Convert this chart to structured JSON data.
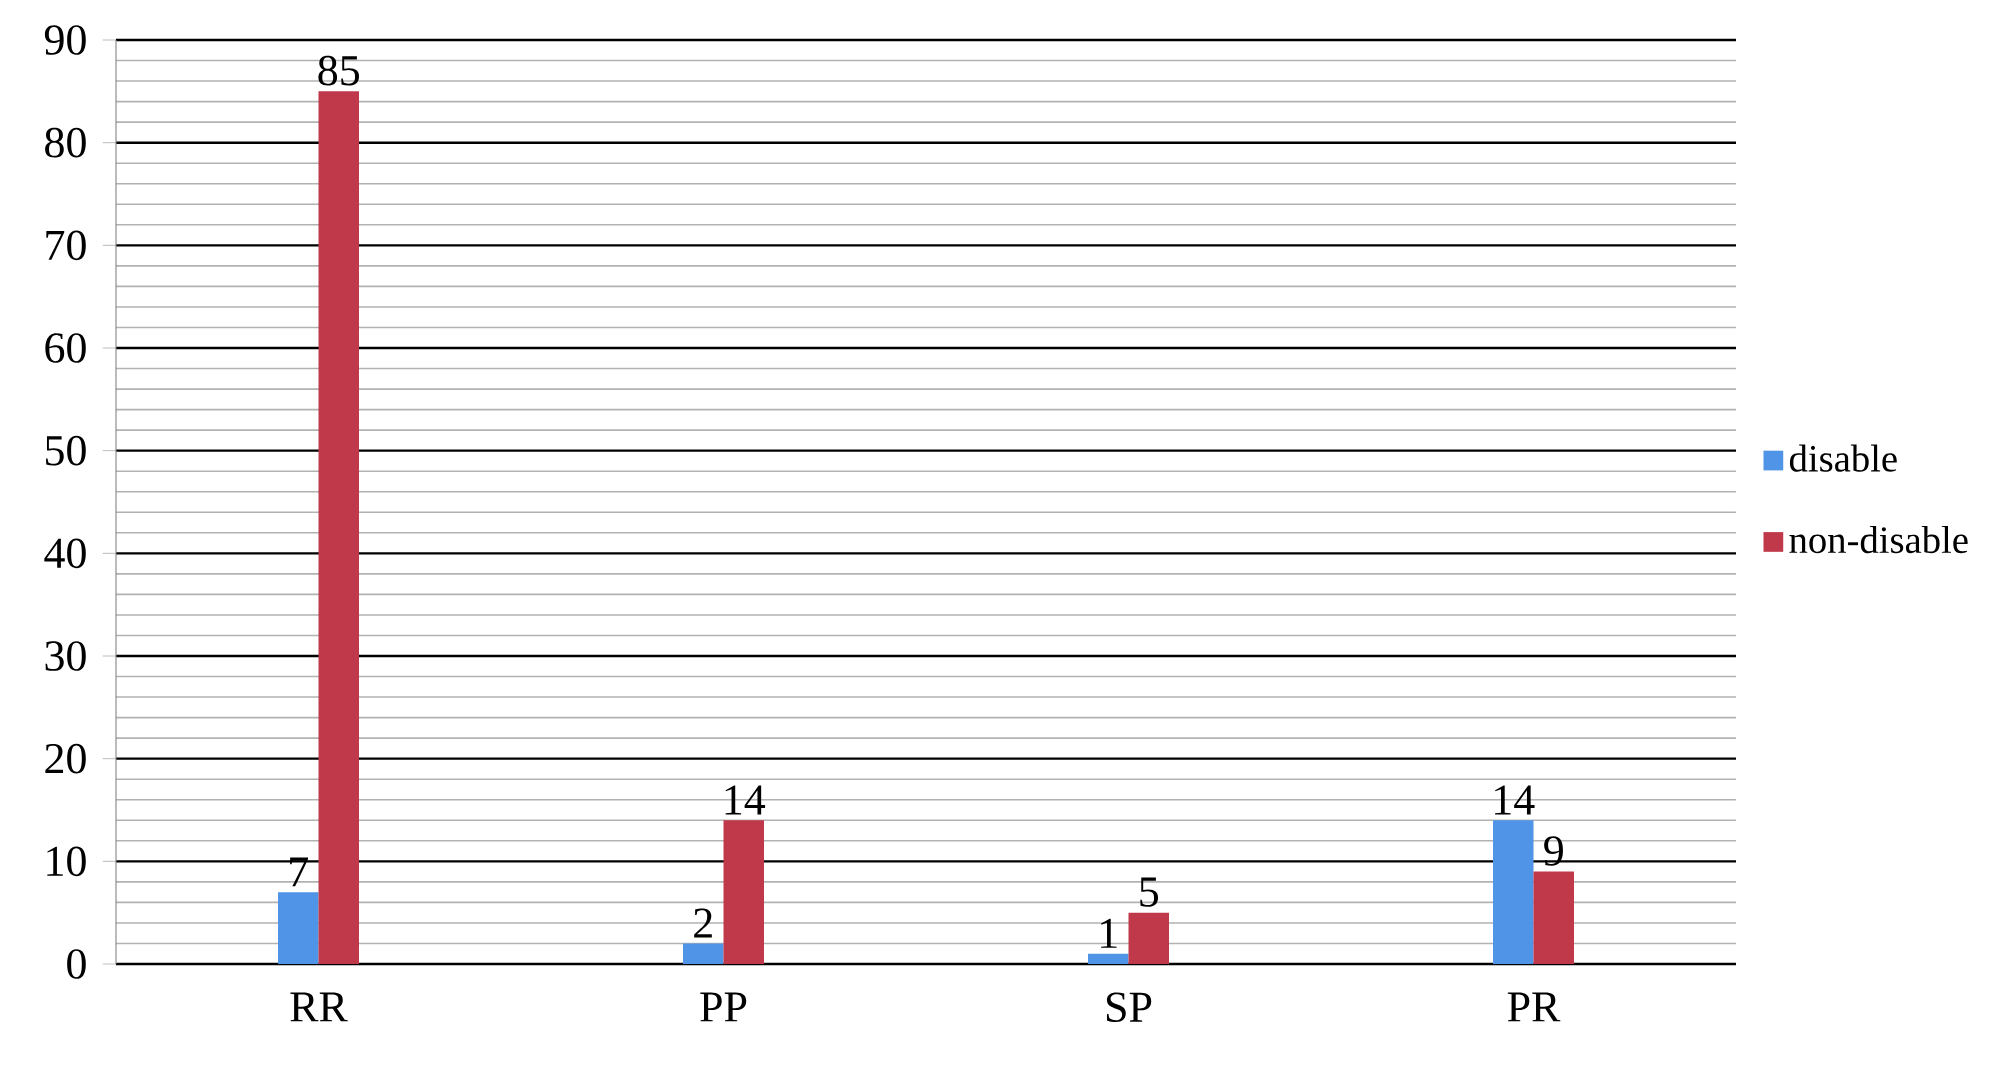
{
  "chart_data": {
    "type": "bar",
    "categories": [
      "RR",
      "PP",
      "SP",
      "PR"
    ],
    "series": [
      {
        "name": "disable",
        "color": "#4f94e6",
        "values": [
          7,
          2,
          1,
          14
        ]
      },
      {
        "name": "non-disable",
        "color": "#c0394b",
        "values": [
          85,
          14,
          5,
          9
        ]
      }
    ],
    "ylim": [
      0,
      90
    ],
    "yticks": [
      0,
      10,
      20,
      30,
      40,
      50,
      60,
      70,
      80,
      90
    ],
    "grid": "y",
    "legend": "right",
    "data_labels": true
  }
}
